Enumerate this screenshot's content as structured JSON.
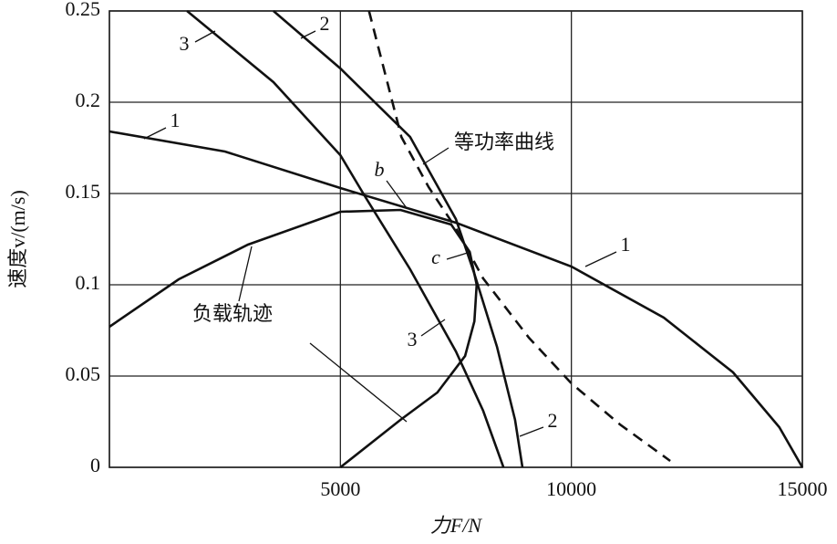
{
  "chart_data": {
    "type": "line",
    "x_label": "力F/N",
    "y_label": "速度v/(m/s)",
    "xlim": [
      0,
      15000
    ],
    "xticks": [
      5000,
      10000,
      15000
    ],
    "ylim": [
      0,
      0.25
    ],
    "yticks": [
      0,
      0.05,
      0.1,
      0.15,
      0.2,
      0.25
    ],
    "grid": true,
    "series": [
      {
        "name": "1",
        "color": "#111111",
        "dashed": false,
        "x": [
          0,
          2500,
          5000,
          7500,
          10000,
          12000,
          13500,
          14500,
          15000
        ],
        "values": [
          0.184,
          0.173,
          0.153,
          0.134,
          0.11,
          0.082,
          0.052,
          0.022,
          0
        ]
      },
      {
        "name": "2",
        "color": "#111111",
        "dashed": false,
        "x": [
          3550,
          5000,
          6510,
          7500,
          7900,
          8390,
          8780,
          8940
        ],
        "values": [
          0.25,
          0.2185,
          0.181,
          0.136,
          0.106,
          0.066,
          0.026,
          0
        ]
      },
      {
        "name": "3",
        "color": "#111111",
        "dashed": false,
        "x": [
          1680,
          3550,
          5000,
          5530,
          6510,
          7500,
          8090,
          8530
        ],
        "values": [
          0.25,
          0.211,
          0.171,
          0.1485,
          0.1085,
          0.0635,
          0.031,
          0
        ]
      },
      {
        "name": "等功率曲线",
        "color": "#111111",
        "dashed": true,
        "x": [
          5620,
          6320,
          6910,
          7500,
          8090,
          9080,
          10000,
          11050,
          12140
        ],
        "values": [
          0.25,
          0.181,
          0.1535,
          0.131,
          0.1035,
          0.071,
          0.046,
          0.0235,
          0.0035
        ]
      },
      {
        "name": "负载轨迹",
        "color": "#111111",
        "dashed": false,
        "x": [
          0,
          1500,
          3000,
          5000,
          6300,
          7400,
          7800,
          7950,
          7900,
          7700,
          7100,
          6300,
          5000
        ],
        "values": [
          0.077,
          0.103,
          0.122,
          0.14,
          0.141,
          0.133,
          0.118,
          0.1,
          0.08,
          0.061,
          0.041,
          0.026,
          0
        ]
      }
    ],
    "annotations": [
      "b",
      "c"
    ]
  }
}
